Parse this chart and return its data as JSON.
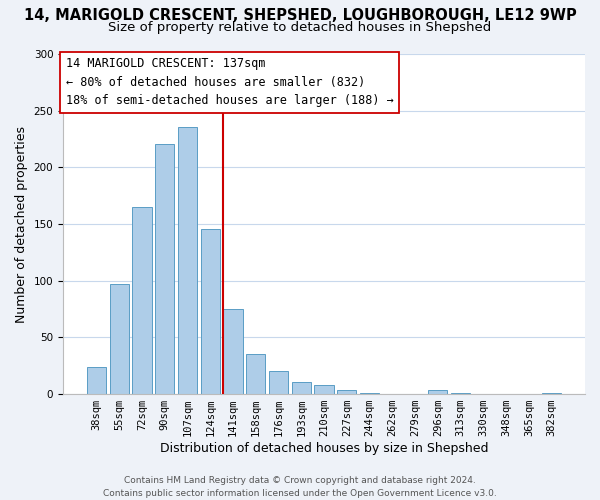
{
  "title": "14, MARIGOLD CRESCENT, SHEPSHED, LOUGHBOROUGH, LE12 9WP",
  "subtitle": "Size of property relative to detached houses in Shepshed",
  "xlabel": "Distribution of detached houses by size in Shepshed",
  "ylabel": "Number of detached properties",
  "bar_labels": [
    "38sqm",
    "55sqm",
    "72sqm",
    "90sqm",
    "107sqm",
    "124sqm",
    "141sqm",
    "158sqm",
    "176sqm",
    "193sqm",
    "210sqm",
    "227sqm",
    "244sqm",
    "262sqm",
    "279sqm",
    "296sqm",
    "313sqm",
    "330sqm",
    "348sqm",
    "365sqm",
    "382sqm"
  ],
  "bar_values": [
    24,
    97,
    165,
    221,
    236,
    146,
    75,
    35,
    20,
    11,
    8,
    4,
    1,
    0,
    0,
    4,
    1,
    0,
    0,
    0,
    1
  ],
  "bar_color": "#aecde8",
  "bar_edge_color": "#5a9dc5",
  "vline_color": "#cc0000",
  "vline_bar_index": 6,
  "ylim": [
    0,
    300
  ],
  "yticks": [
    0,
    50,
    100,
    150,
    200,
    250,
    300
  ],
  "annotation_title": "14 MARIGOLD CRESCENT: 137sqm",
  "annotation_line1": "← 80% of detached houses are smaller (832)",
  "annotation_line2": "18% of semi-detached houses are larger (188) →",
  "footer_line1": "Contains HM Land Registry data © Crown copyright and database right 2024.",
  "footer_line2": "Contains public sector information licensed under the Open Government Licence v3.0.",
  "background_color": "#eef2f8",
  "plot_background_color": "#ffffff",
  "grid_color": "#c8d8ec",
  "title_fontsize": 10.5,
  "subtitle_fontsize": 9.5,
  "axis_label_fontsize": 9,
  "tick_fontsize": 7.5,
  "footer_fontsize": 6.5
}
